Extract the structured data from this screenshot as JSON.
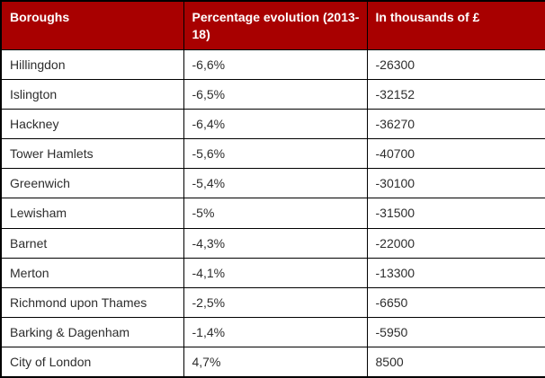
{
  "table": {
    "headers": [
      "Boroughs",
      "Percentage evolution (2013-18)",
      "In thousands of £"
    ],
    "rows": [
      [
        "Hillingdon",
        "-6,6%",
        "-26300"
      ],
      [
        "Islington",
        "-6,5%",
        "-32152"
      ],
      [
        "Hackney",
        "-6,4%",
        "-36270"
      ],
      [
        "Tower Hamlets",
        "-5,6%",
        "-40700"
      ],
      [
        "Greenwich",
        "-5,4%",
        "-30100"
      ],
      [
        "Lewisham",
        "-5%",
        "-31500"
      ],
      [
        "Barnet",
        "-4,3%",
        "-22000"
      ],
      [
        "Merton",
        "-4,1%",
        "-13300"
      ],
      [
        "Richmond upon Thames",
        "-2,5%",
        "-6650"
      ],
      [
        "Barking & Dagenham",
        "-1,4%",
        "-5950"
      ],
      [
        "City of London",
        "4,7%",
        "8500"
      ]
    ]
  },
  "colors": {
    "header_background": "#A80000",
    "header_text": "#FFFFFF",
    "border": "#000000",
    "body_text": "#2D2D2D"
  },
  "chart_data": {
    "type": "table",
    "title": "",
    "columns": [
      "Boroughs",
      "Percentage evolution (2013-18)",
      "In thousands of £"
    ],
    "categories": [
      "Hillingdon",
      "Islington",
      "Hackney",
      "Tower Hamlets",
      "Greenwich",
      "Lewisham",
      "Barnet",
      "Merton",
      "Richmond upon Thames",
      "Barking & Dagenham",
      "City of London"
    ],
    "series": [
      {
        "name": "Percentage evolution (2013-18)",
        "unit": "%",
        "values": [
          -6.6,
          -6.5,
          -6.4,
          -5.6,
          -5.4,
          -5,
          -4.3,
          -4.1,
          -2.5,
          -1.4,
          4.7
        ]
      },
      {
        "name": "In thousands of £",
        "unit": "thousands £",
        "values": [
          -26300,
          -32152,
          -36270,
          -40700,
          -30100,
          -31500,
          -22000,
          -13300,
          -6650,
          -5950,
          8500
        ]
      }
    ]
  }
}
